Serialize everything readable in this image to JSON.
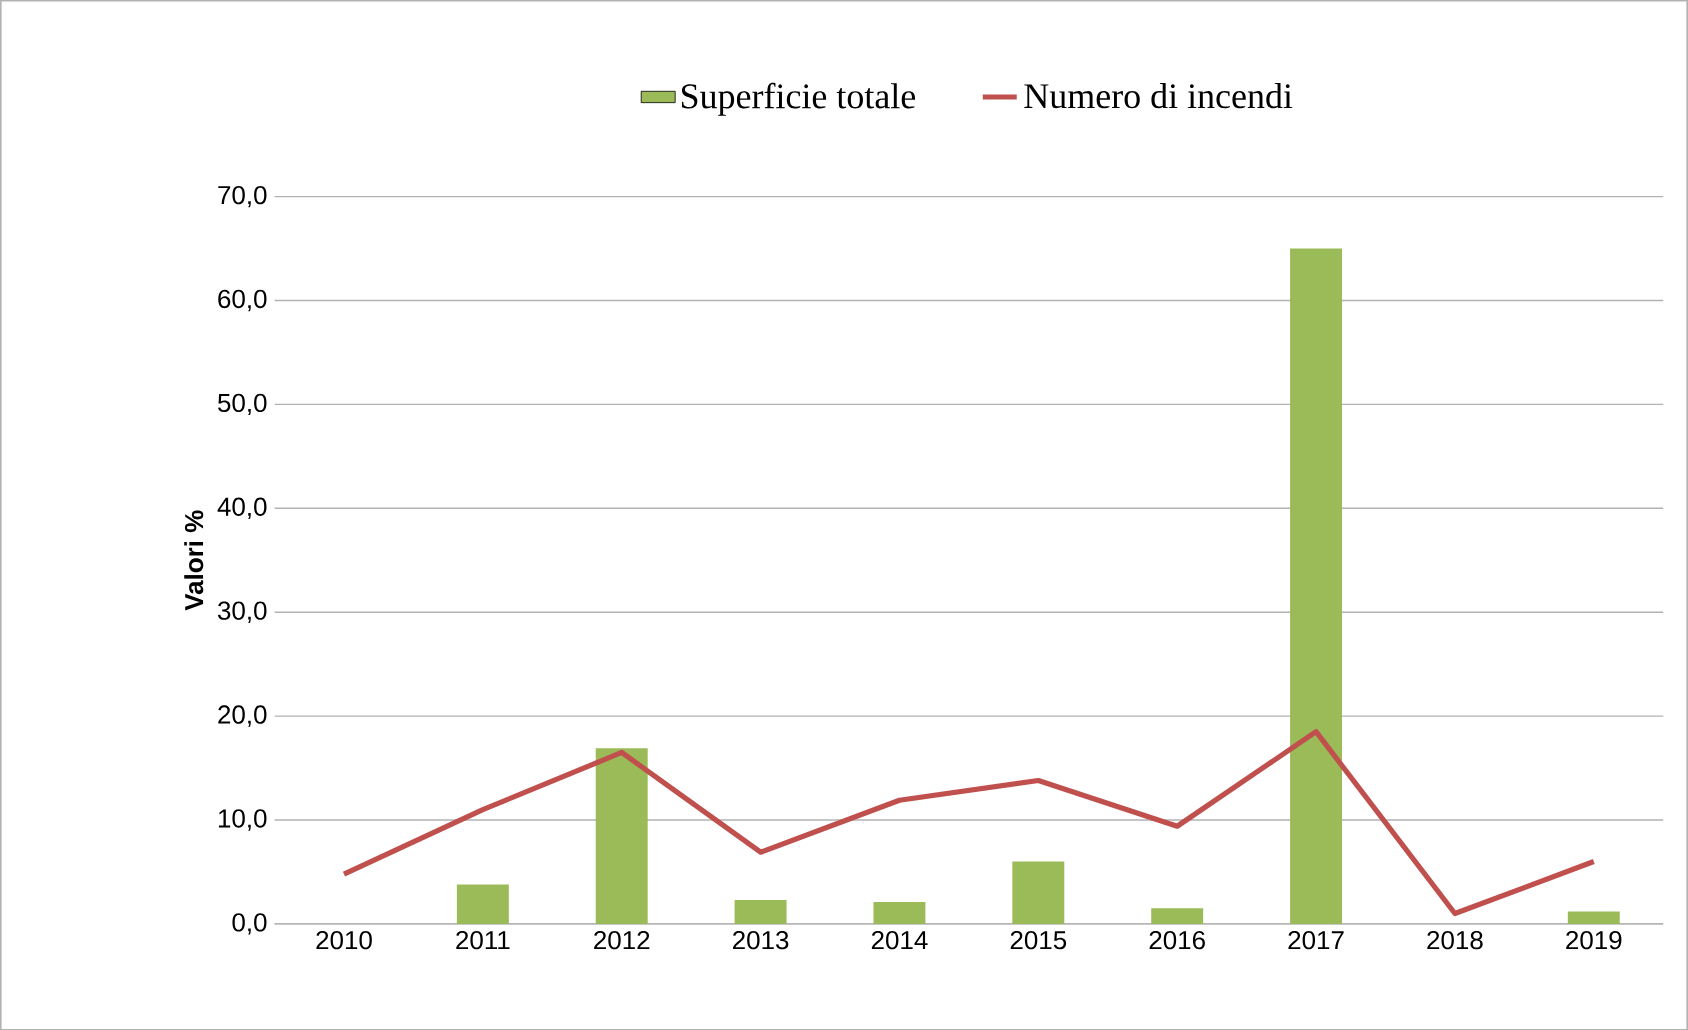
{
  "chart_data": {
    "type": "bar",
    "ylabel": "Valori %",
    "categories": [
      "2010",
      "2011",
      "2012",
      "2013",
      "2014",
      "2015",
      "2016",
      "2017",
      "2018",
      "2019"
    ],
    "series": [
      {
        "name": "Superficie totale",
        "color": "#9bbb59",
        "values": [
          null,
          3.8,
          16.9,
          2.3,
          2.1,
          6.0,
          1.5,
          65.0,
          null,
          1.2
        ]
      },
      {
        "name": "Numero di incendi",
        "type": "line",
        "color": "#c0504d",
        "values": [
          4.8,
          11.0,
          16.5,
          6.9,
          11.9,
          13.8,
          9.4,
          18.5,
          1.0,
          6.0
        ]
      }
    ],
    "ylim": [
      0,
      70
    ],
    "yticks": [
      {
        "value": 0,
        "label": "0,0"
      },
      {
        "value": 10,
        "label": "10,0"
      },
      {
        "value": 20,
        "label": "20,0"
      },
      {
        "value": 30,
        "label": "30,0"
      },
      {
        "value": 40,
        "label": "40,0"
      },
      {
        "value": 50,
        "label": "50,0"
      },
      {
        "value": 60,
        "label": "60,0"
      },
      {
        "value": 70,
        "label": "70,0"
      }
    ],
    "grid": "y",
    "legend": "top",
    "marker": "none",
    "line_style": "solid"
  }
}
